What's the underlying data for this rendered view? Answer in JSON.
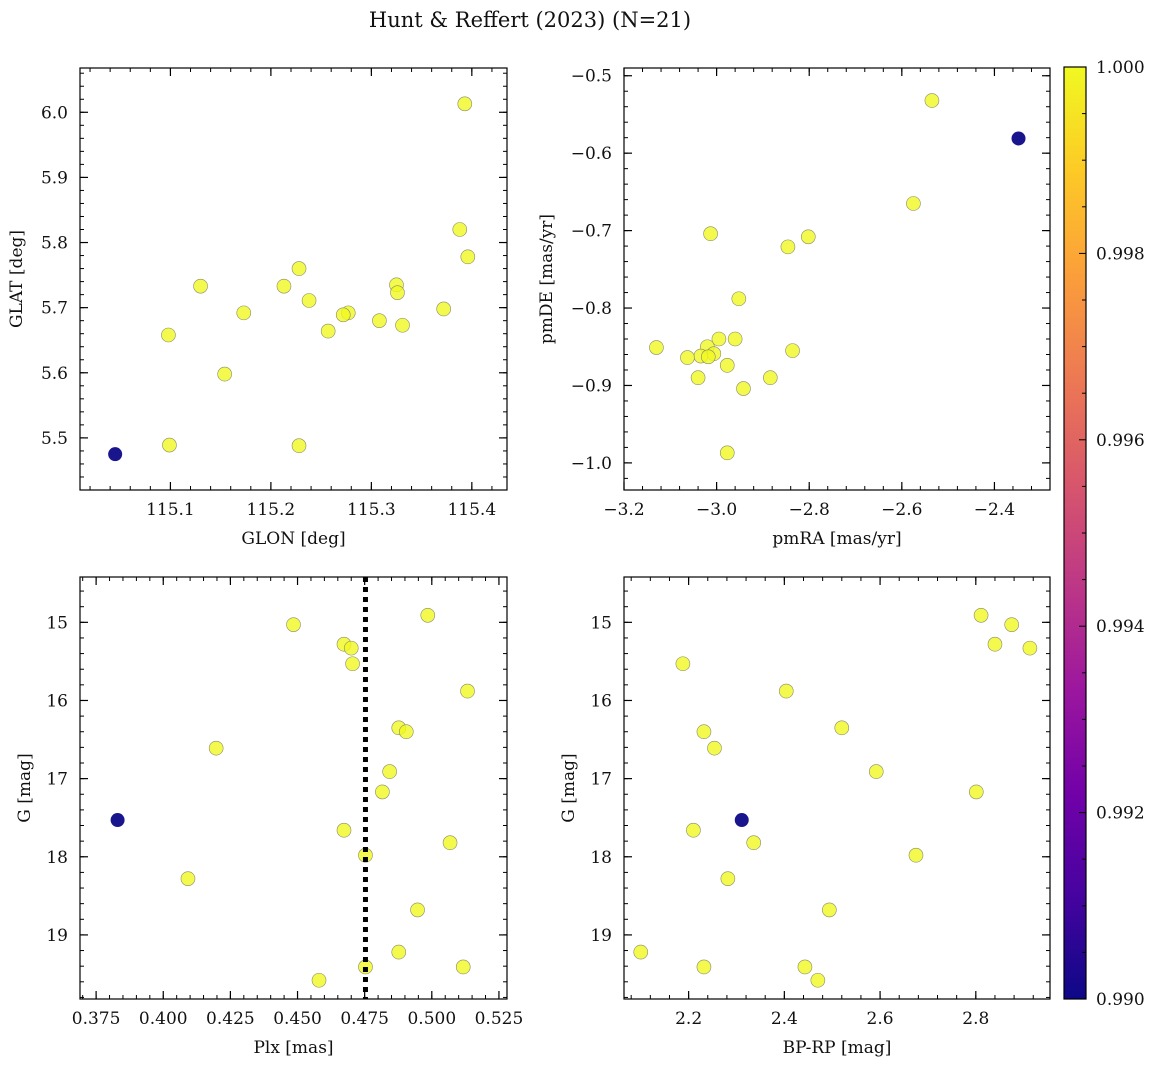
{
  "figure": {
    "title": "Hunt & Reffert (2023) (N=21)"
  },
  "colors": {
    "member": "#f0f921",
    "nonmember": "#3b3494",
    "dotted_line": "#000000",
    "colormap": [
      "#0d0887",
      "#46039f",
      "#7201a8",
      "#9c179e",
      "#bd3786",
      "#d8576b",
      "#ed7953",
      "#fb9f3a",
      "#fdca26",
      "#f0f921"
    ]
  },
  "colorbar": {
    "range": [
      0.99,
      1.0
    ],
    "ticks": [
      0.99,
      0.992,
      0.994,
      0.996,
      0.998,
      1.0
    ],
    "tick_labels": [
      "0.990",
      "0.992",
      "0.994",
      "0.996",
      "0.998",
      "1.000"
    ],
    "colormap": "plasma"
  },
  "chart_data": [
    {
      "id": "glon-glat",
      "type": "scatter",
      "title": "",
      "xlabel": "GLON [deg]",
      "ylabel": "GLAT [deg]",
      "xlim": [
        115.01,
        115.435
      ],
      "ylim": [
        5.42,
        6.068
      ],
      "invert_y": false,
      "xticks": [
        115.1,
        115.2,
        115.3,
        115.4
      ],
      "xtick_labels": [
        "115.1",
        "115.2",
        "115.3",
        "115.4"
      ],
      "yticks": [
        5.5,
        5.6,
        5.7,
        5.8,
        5.9,
        6.0
      ],
      "ytick_labels": [
        "5.5",
        "5.6",
        "5.7",
        "5.8",
        "5.9",
        "6.0"
      ],
      "points": [
        {
          "x": 115.045,
          "y": 5.475,
          "p": 0.99
        },
        {
          "x": 115.393,
          "y": 6.013,
          "p": 1.0
        },
        {
          "x": 115.388,
          "y": 5.82,
          "p": 1.0
        },
        {
          "x": 115.396,
          "y": 5.778,
          "p": 1.0
        },
        {
          "x": 115.228,
          "y": 5.76,
          "p": 1.0
        },
        {
          "x": 115.325,
          "y": 5.735,
          "p": 1.0
        },
        {
          "x": 115.13,
          "y": 5.733,
          "p": 1.0
        },
        {
          "x": 115.213,
          "y": 5.733,
          "p": 1.0
        },
        {
          "x": 115.326,
          "y": 5.723,
          "p": 1.0
        },
        {
          "x": 115.238,
          "y": 5.711,
          "p": 1.0
        },
        {
          "x": 115.372,
          "y": 5.698,
          "p": 1.0
        },
        {
          "x": 115.173,
          "y": 5.692,
          "p": 1.0
        },
        {
          "x": 115.277,
          "y": 5.692,
          "p": 1.0
        },
        {
          "x": 115.272,
          "y": 5.689,
          "p": 1.0
        },
        {
          "x": 115.308,
          "y": 5.68,
          "p": 1.0
        },
        {
          "x": 115.331,
          "y": 5.673,
          "p": 1.0
        },
        {
          "x": 115.257,
          "y": 5.664,
          "p": 1.0
        },
        {
          "x": 115.098,
          "y": 5.658,
          "p": 1.0
        },
        {
          "x": 115.154,
          "y": 5.598,
          "p": 1.0
        },
        {
          "x": 115.099,
          "y": 5.489,
          "p": 1.0
        },
        {
          "x": 115.228,
          "y": 5.488,
          "p": 1.0
        }
      ]
    },
    {
      "id": "pm",
      "type": "scatter",
      "title": "",
      "xlabel": "pmRA [mas/yr]",
      "ylabel": "pmDE [mas/yr]",
      "xlim": [
        -3.2,
        -2.28
      ],
      "ylim": [
        -1.035,
        -0.49
      ],
      "invert_y": false,
      "xticks": [
        -3.2,
        -3.0,
        -2.8,
        -2.6,
        -2.4
      ],
      "xtick_labels": [
        "−3.2",
        "−3.0",
        "−2.8",
        "−2.6",
        "−2.4"
      ],
      "yticks": [
        -1.0,
        -0.9,
        -0.8,
        -0.7,
        -0.6,
        -0.5
      ],
      "ytick_labels": [
        "−1.0",
        "−0.9",
        "−0.8",
        "−0.7",
        "−0.6",
        "−0.5"
      ],
      "points": [
        {
          "x": -2.348,
          "y": -0.581,
          "p": 0.99
        },
        {
          "x": -2.535,
          "y": -0.532,
          "p": 1.0
        },
        {
          "x": -2.575,
          "y": -0.665,
          "p": 1.0
        },
        {
          "x": -3.013,
          "y": -0.704,
          "p": 1.0
        },
        {
          "x": -2.802,
          "y": -0.708,
          "p": 1.0
        },
        {
          "x": -2.846,
          "y": -0.721,
          "p": 1.0
        },
        {
          "x": -2.952,
          "y": -0.788,
          "p": 1.0
        },
        {
          "x": -2.995,
          "y": -0.84,
          "p": 1.0
        },
        {
          "x": -2.96,
          "y": -0.84,
          "p": 1.0
        },
        {
          "x": -3.02,
          "y": -0.85,
          "p": 1.0
        },
        {
          "x": -3.13,
          "y": -0.851,
          "p": 1.0
        },
        {
          "x": -2.836,
          "y": -0.855,
          "p": 1.0
        },
        {
          "x": -3.006,
          "y": -0.859,
          "p": 1.0
        },
        {
          "x": -3.034,
          "y": -0.862,
          "p": 1.0
        },
        {
          "x": -3.018,
          "y": -0.863,
          "p": 1.0
        },
        {
          "x": -3.063,
          "y": -0.864,
          "p": 1.0
        },
        {
          "x": -2.977,
          "y": -0.874,
          "p": 1.0
        },
        {
          "x": -3.04,
          "y": -0.89,
          "p": 1.0
        },
        {
          "x": -2.884,
          "y": -0.89,
          "p": 1.0
        },
        {
          "x": -2.942,
          "y": -0.904,
          "p": 1.0
        },
        {
          "x": -2.977,
          "y": -0.987,
          "p": 1.0
        }
      ]
    },
    {
      "id": "plx-g",
      "type": "scatter",
      "title": "",
      "xlabel": "Plx [mas]",
      "ylabel": "G [mag]",
      "xlim": [
        0.369,
        0.528
      ],
      "ylim": [
        19.82,
        14.42
      ],
      "invert_y": true,
      "xticks": [
        0.375,
        0.4,
        0.425,
        0.45,
        0.475,
        0.5,
        0.525
      ],
      "xtick_labels": [
        "0.375",
        "0.400",
        "0.425",
        "0.450",
        "0.475",
        "0.500",
        "0.525"
      ],
      "yticks": [
        15,
        16,
        17,
        18,
        19
      ],
      "ytick_labels": [
        "15",
        "16",
        "17",
        "18",
        "19"
      ],
      "vline": {
        "x": 0.4753,
        "style": "dotted"
      },
      "points": [
        {
          "x": 0.383,
          "y": 17.53,
          "p": 0.99
        },
        {
          "x": 0.4985,
          "y": 14.91,
          "p": 1.0
        },
        {
          "x": 0.4485,
          "y": 15.03,
          "p": 1.0
        },
        {
          "x": 0.4673,
          "y": 15.28,
          "p": 1.0
        },
        {
          "x": 0.47,
          "y": 15.33,
          "p": 1.0
        },
        {
          "x": 0.4705,
          "y": 15.53,
          "p": 1.0
        },
        {
          "x": 0.5133,
          "y": 15.88,
          "p": 1.0
        },
        {
          "x": 0.4877,
          "y": 16.35,
          "p": 1.0
        },
        {
          "x": 0.4905,
          "y": 16.4,
          "p": 1.0
        },
        {
          "x": 0.4197,
          "y": 16.61,
          "p": 1.0
        },
        {
          "x": 0.4843,
          "y": 16.91,
          "p": 1.0
        },
        {
          "x": 0.4816,
          "y": 17.17,
          "p": 1.0
        },
        {
          "x": 0.4673,
          "y": 17.66,
          "p": 1.0
        },
        {
          "x": 0.5068,
          "y": 17.82,
          "p": 1.0
        },
        {
          "x": 0.4753,
          "y": 17.98,
          "p": 1.0
        },
        {
          "x": 0.4092,
          "y": 18.28,
          "p": 1.0
        },
        {
          "x": 0.4947,
          "y": 18.68,
          "p": 1.0
        },
        {
          "x": 0.4877,
          "y": 19.22,
          "p": 1.0
        },
        {
          "x": 0.4753,
          "y": 19.41,
          "p": 1.0
        },
        {
          "x": 0.5117,
          "y": 19.41,
          "p": 1.0
        },
        {
          "x": 0.458,
          "y": 19.58,
          "p": 1.0
        }
      ]
    },
    {
      "id": "cmd",
      "type": "scatter",
      "title": "",
      "xlabel": "BP-RP [mag]",
      "ylabel": "G [mag]",
      "xlim": [
        2.065,
        2.955
      ],
      "ylim": [
        19.82,
        14.42
      ],
      "invert_y": true,
      "xticks": [
        2.2,
        2.4,
        2.6,
        2.8
      ],
      "xtick_labels": [
        "2.2",
        "2.4",
        "2.6",
        "2.8"
      ],
      "yticks": [
        15,
        16,
        17,
        18,
        19
      ],
      "ytick_labels": [
        "15",
        "16",
        "17",
        "18",
        "19"
      ],
      "points": [
        {
          "x": 2.311,
          "y": 17.53,
          "p": 0.99
        },
        {
          "x": 2.811,
          "y": 14.91,
          "p": 1.0
        },
        {
          "x": 2.875,
          "y": 15.03,
          "p": 1.0
        },
        {
          "x": 2.84,
          "y": 15.28,
          "p": 1.0
        },
        {
          "x": 2.913,
          "y": 15.33,
          "p": 1.0
        },
        {
          "x": 2.188,
          "y": 15.53,
          "p": 1.0
        },
        {
          "x": 2.404,
          "y": 15.88,
          "p": 1.0
        },
        {
          "x": 2.52,
          "y": 16.35,
          "p": 1.0
        },
        {
          "x": 2.232,
          "y": 16.4,
          "p": 1.0
        },
        {
          "x": 2.254,
          "y": 16.61,
          "p": 1.0
        },
        {
          "x": 2.592,
          "y": 16.91,
          "p": 1.0
        },
        {
          "x": 2.801,
          "y": 17.17,
          "p": 1.0
        },
        {
          "x": 2.21,
          "y": 17.66,
          "p": 1.0
        },
        {
          "x": 2.336,
          "y": 17.82,
          "p": 1.0
        },
        {
          "x": 2.675,
          "y": 17.98,
          "p": 1.0
        },
        {
          "x": 2.282,
          "y": 18.28,
          "p": 1.0
        },
        {
          "x": 2.494,
          "y": 18.68,
          "p": 1.0
        },
        {
          "x": 2.1,
          "y": 19.22,
          "p": 1.0
        },
        {
          "x": 2.232,
          "y": 19.41,
          "p": 1.0
        },
        {
          "x": 2.443,
          "y": 19.41,
          "p": 1.0
        },
        {
          "x": 2.47,
          "y": 19.58,
          "p": 1.0
        }
      ]
    }
  ]
}
